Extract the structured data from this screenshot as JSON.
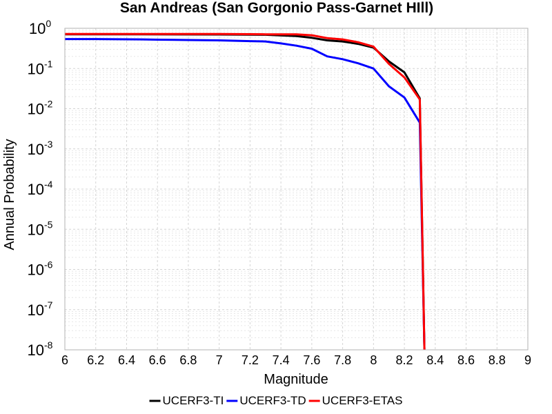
{
  "chart_data": {
    "type": "line",
    "title": "San Andreas (San Gorgonio Pass-Garnet HIll)",
    "xlabel": "Magnitude",
    "ylabel": "Annual Probability",
    "xlim": [
      6,
      9
    ],
    "ylim": [
      1e-08,
      1
    ],
    "yscale": "log",
    "grid": true,
    "legend_position": "bottom",
    "x_ticks": [
      "6",
      "6.2",
      "6.4",
      "6.6",
      "6.8",
      "7",
      "7.2",
      "7.4",
      "7.6",
      "7.8",
      "8",
      "8.2",
      "8.4",
      "8.6",
      "8.8",
      "9"
    ],
    "y_ticks": [
      {
        "base": "10",
        "exp": "0"
      },
      {
        "base": "10",
        "exp": "-1"
      },
      {
        "base": "10",
        "exp": "-2"
      },
      {
        "base": "10",
        "exp": "-3"
      },
      {
        "base": "10",
        "exp": "-4"
      },
      {
        "base": "10",
        "exp": "-5"
      },
      {
        "base": "10",
        "exp": "-6"
      },
      {
        "base": "10",
        "exp": "-7"
      },
      {
        "base": "10",
        "exp": "-8"
      }
    ],
    "series": [
      {
        "name": "UCERF3-TI",
        "color": "#000000",
        "x": [
          6.0,
          6.5,
          7.0,
          7.3,
          7.5,
          7.6,
          7.7,
          7.8,
          7.9,
          8.0,
          8.1,
          8.2,
          8.3,
          8.33
        ],
        "y": [
          0.71,
          0.71,
          0.7,
          0.69,
          0.64,
          0.58,
          0.5,
          0.47,
          0.41,
          0.33,
          0.15,
          0.08,
          0.018,
          1e-08
        ]
      },
      {
        "name": "UCERF3-TD",
        "color": "#0000ff",
        "x": [
          6.0,
          6.2,
          6.5,
          6.6,
          6.8,
          7.0,
          7.2,
          7.3,
          7.4,
          7.5,
          7.6,
          7.7,
          7.8,
          7.9,
          8.0,
          8.1,
          8.2,
          8.3,
          8.33
        ],
        "y": [
          0.54,
          0.54,
          0.53,
          0.52,
          0.51,
          0.5,
          0.48,
          0.47,
          0.42,
          0.37,
          0.31,
          0.2,
          0.17,
          0.135,
          0.1,
          0.036,
          0.019,
          0.0045,
          1e-08
        ]
      },
      {
        "name": "UCERF3-ETAS",
        "color": "#ff0000",
        "x": [
          6.0,
          6.5,
          7.0,
          7.3,
          7.5,
          7.6,
          7.7,
          7.8,
          7.9,
          8.0,
          8.1,
          8.2,
          8.3,
          8.33
        ],
        "y": [
          0.72,
          0.72,
          0.72,
          0.71,
          0.71,
          0.67,
          0.57,
          0.53,
          0.45,
          0.35,
          0.13,
          0.06,
          0.017,
          1e-08
        ]
      }
    ]
  }
}
